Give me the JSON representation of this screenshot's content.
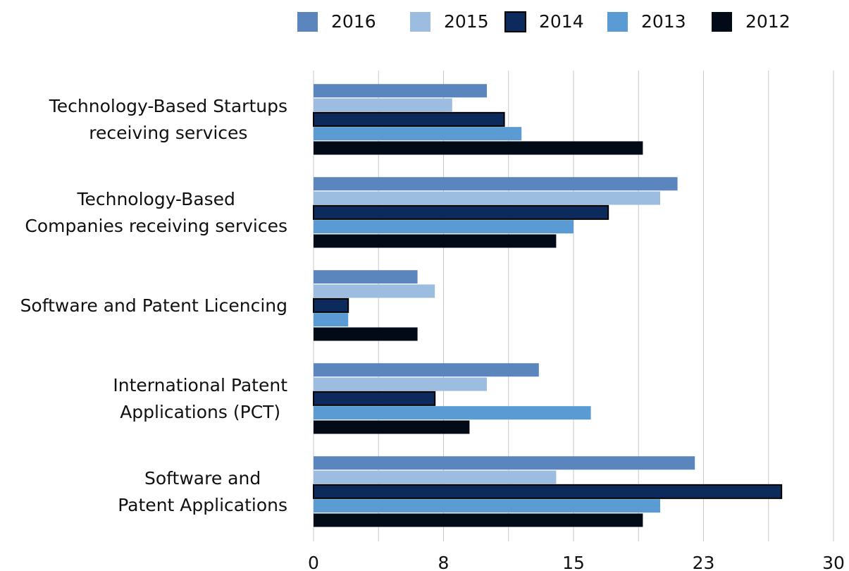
{
  "chart_data": {
    "type": "barh",
    "categories": [
      [
        "Technology-Based Startups",
        "receiving services"
      ],
      [
        "Technology-Based",
        "Companies receiving services"
      ],
      [
        "Software and Patent Licencing"
      ],
      [
        "International Patent",
        "Applications (PCT)"
      ],
      [
        "Software and",
        "Patent Applications"
      ]
    ],
    "series": [
      {
        "name": "2016",
        "color": "#5b86bd",
        "values": [
          10,
          21,
          6,
          13,
          22
        ]
      },
      {
        "name": "2015",
        "color": "#9dbde0",
        "values": [
          8,
          20,
          7,
          10,
          14
        ]
      },
      {
        "name": "2014",
        "color": "#0c2a5c",
        "values": [
          11,
          17,
          2,
          7,
          27
        ]
      },
      {
        "name": "2013",
        "color": "#5a9bd4",
        "values": [
          12,
          15,
          2,
          16,
          20
        ]
      },
      {
        "name": "2012",
        "color": "#030a17",
        "values": [
          19,
          14,
          6,
          9,
          19
        ]
      }
    ],
    "xlim": [
      0,
      30
    ],
    "xticks": [
      0,
      {
        "value": 7.5,
        "label": "8"
      },
      15,
      {
        "value": 22.5,
        "label": "23"
      },
      30
    ],
    "xminor": [
      3.75,
      11.25,
      18.75,
      26.25
    ],
    "grid": true,
    "legend": "top"
  }
}
